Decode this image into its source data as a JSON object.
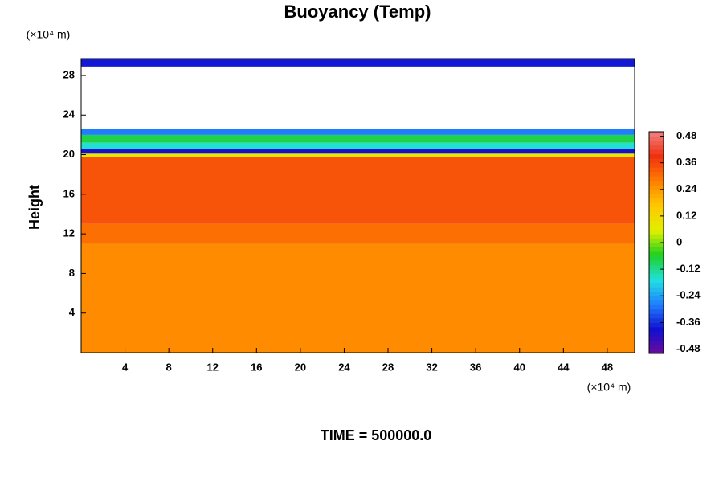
{
  "chart_data": {
    "type": "contour",
    "title": "Buoyancy (Temp)",
    "ylabel": "Height",
    "yunit": "(×10⁴ m)",
    "xunit": "(×10⁴ m)",
    "footer": "TIME = 500000.0",
    "xlim": [
      0,
      50.5
    ],
    "xticks": [
      4,
      8,
      12,
      16,
      20,
      24,
      28,
      32,
      36,
      40,
      44,
      48
    ],
    "ylim": [
      0,
      29.7
    ],
    "yticks": [
      4,
      8,
      12,
      16,
      20,
      24,
      28
    ],
    "clim": [
      -0.5,
      0.5
    ],
    "cticks": [
      0.48,
      0.36,
      0.24,
      0.12,
      0,
      -0.12,
      -0.24,
      -0.36,
      -0.48
    ],
    "colormap": [
      "#6a0a9a",
      "#1010d0",
      "#2080ff",
      "#20e0e0",
      "#20d020",
      "#e0f000",
      "#ffc800",
      "#ff8000",
      "#f03010",
      "#f08080"
    ],
    "layers": [
      {
        "bottom": 0,
        "top": 11,
        "value": 0.26
      },
      {
        "bottom": 11,
        "top": 13,
        "value": 0.3
      },
      {
        "bottom": 13,
        "top": 19.8,
        "value": 0.34
      },
      {
        "bottom": 19.8,
        "top": 20.1,
        "value": 0.08
      },
      {
        "bottom": 20.1,
        "top": 20.6,
        "value": -0.4
      },
      {
        "bottom": 20.6,
        "top": 21.2,
        "value": -0.16
      },
      {
        "bottom": 21.2,
        "top": 22,
        "value": -0.08
      },
      {
        "bottom": 22,
        "top": 22.6,
        "value": -0.28
      },
      {
        "bottom": 28.9,
        "top": 29.7,
        "value": -0.38
      }
    ]
  }
}
